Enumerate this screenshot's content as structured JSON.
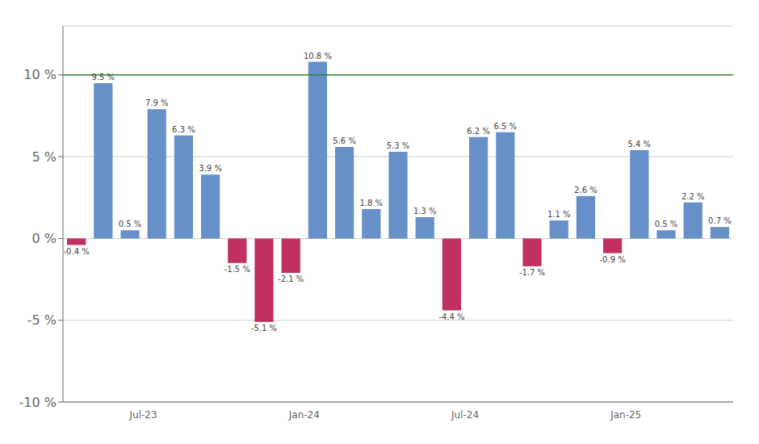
{
  "chart_data": {
    "type": "bar",
    "categories": [
      null,
      null,
      "Jul-23",
      null,
      null,
      null,
      null,
      null,
      "Jan-24",
      null,
      null,
      null,
      null,
      null,
      "Jul-24",
      null,
      null,
      null,
      null,
      null,
      "Jan-25",
      null,
      null,
      null,
      null
    ],
    "values": [
      -0.4,
      9.5,
      0.5,
      7.9,
      6.3,
      3.9,
      -1.5,
      -5.1,
      -2.1,
      10.8,
      5.6,
      1.8,
      5.3,
      1.3,
      -4.4,
      6.2,
      6.5,
      -1.7,
      1.1,
      2.6,
      -0.9,
      5.4,
      0.5,
      2.2,
      0.7
    ],
    "value_labels": [
      "-0.4 %",
      "9.5 %",
      "0.5 %",
      "7.9 %",
      "6.3 %",
      "3.9 %",
      "-1.5 %",
      "-5.1 %",
      "-2.1 %",
      "10.8 %",
      "5.6 %",
      "1.8 %",
      "5.3 %",
      "1.3 %",
      "-4.4 %",
      "6.2 %",
      "6.5 %",
      "-1.7 %",
      "1.1 %",
      "2.6 %",
      "-0.9 %",
      "5.4 %",
      "0.5 %",
      "2.2 %",
      "0.7 %"
    ],
    "colors": [
      "#c03060",
      "#6890c8",
      "#6890c8",
      "#6890c8",
      "#6890c8",
      "#6890c8",
      "#c03060",
      "#c03060",
      "#c03060",
      "#6890c8",
      "#6890c8",
      "#6890c8",
      "#6890c8",
      "#6890c8",
      "#c03060",
      "#6890c8",
      "#6890c8",
      "#c03060",
      "#6890c8",
      "#6890c8",
      "#c03060",
      "#6890c8",
      "#6890c8",
      "#6890c8",
      "#6890c8"
    ],
    "ylim": [
      -10,
      13
    ],
    "yticks": [
      {
        "value": -10,
        "label": "-10 %"
      },
      {
        "value": -5,
        "label": "-5 %"
      },
      {
        "value": 0,
        "label": "0 %"
      },
      {
        "value": 5,
        "label": "5 %"
      },
      {
        "value": 10,
        "label": "10 %"
      }
    ],
    "reference_line": {
      "value": 10,
      "color": "#2e8b2e"
    },
    "grid": true,
    "data_labels": true
  }
}
